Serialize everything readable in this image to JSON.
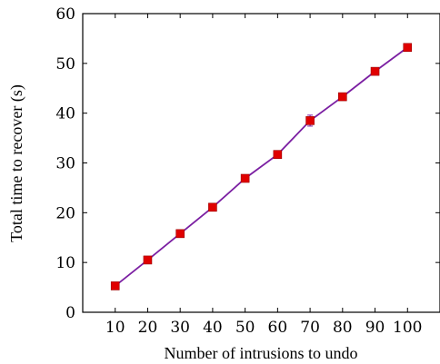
{
  "chart_data": {
    "type": "line",
    "xlabel": "Number of intrusions to undo",
    "ylabel": "Total time to recover (s)",
    "ylim": [
      0,
      60
    ],
    "xlim": [
      0,
      110
    ],
    "x_ticks": [
      10,
      20,
      30,
      40,
      50,
      60,
      70,
      80,
      90,
      100
    ],
    "y_ticks": [
      0,
      10,
      20,
      30,
      40,
      50,
      60
    ],
    "grid": false,
    "series": [
      {
        "x": [
          10,
          20,
          30,
          40,
          50,
          60,
          70,
          80,
          90,
          100
        ],
        "values": [
          5.3,
          10.5,
          15.8,
          21.1,
          26.9,
          31.7,
          38.5,
          43.3,
          48.4,
          53.2
        ],
        "error": [
          0.3,
          0.3,
          0.3,
          0.3,
          0.3,
          0.3,
          1.1,
          0.4,
          0.3,
          0.3
        ],
        "line_color": "#7b1fa2",
        "marker_color": "#e00000",
        "marker": "square"
      }
    ]
  }
}
